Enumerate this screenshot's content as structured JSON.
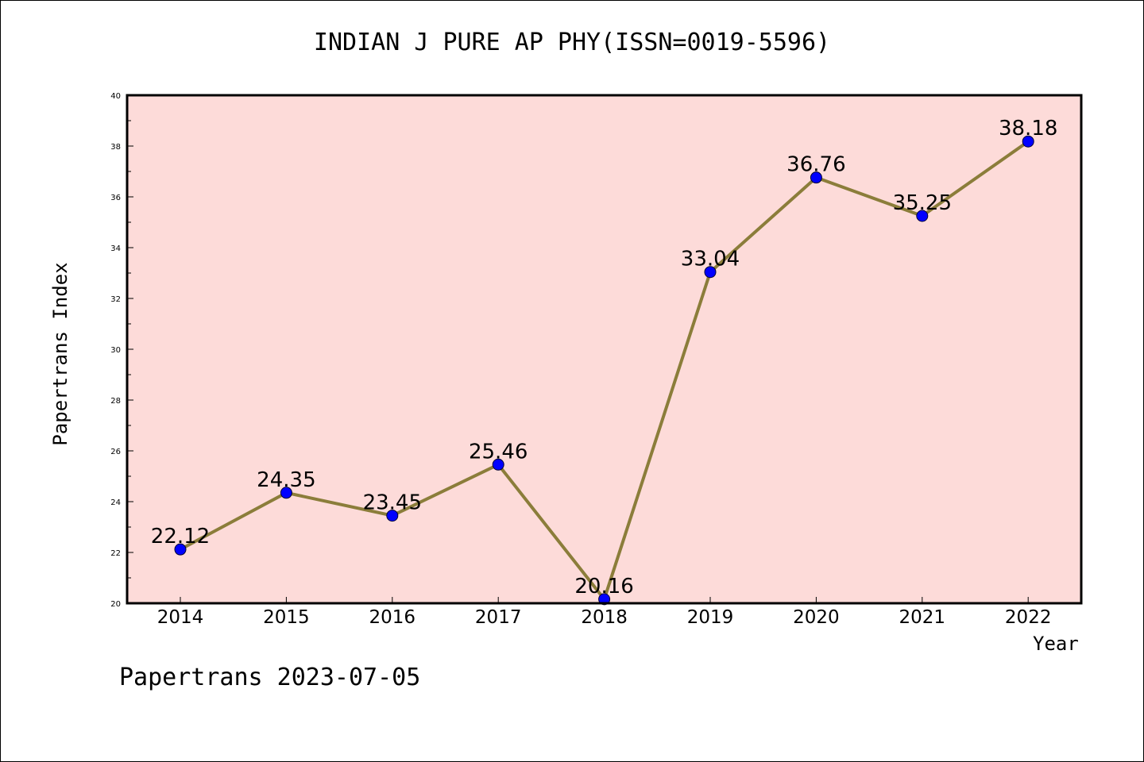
{
  "chart_data": {
    "type": "line",
    "title": "INDIAN J PURE AP PHY(ISSN=0019-5596)",
    "xlabel": "Year",
    "ylabel": "Papertrans Index",
    "x": [
      "2014",
      "2015",
      "2016",
      "2017",
      "2018",
      "2019",
      "2020",
      "2021",
      "2022"
    ],
    "values": [
      22.12,
      24.35,
      23.45,
      25.46,
      20.16,
      33.04,
      36.76,
      35.25,
      38.18
    ],
    "data_labels": [
      "22.12",
      "24.35",
      "23.45",
      "25.46",
      "20.16",
      "33.04",
      "36.76",
      "35.25",
      "38.18"
    ],
    "ylim": [
      20,
      40
    ],
    "yticks": [
      20,
      22,
      24,
      26,
      28,
      30,
      32,
      34,
      36,
      38,
      40
    ],
    "grid": false,
    "legend": "none",
    "colors": {
      "plot_background": "#fddbd9",
      "line": "#8b7d3a",
      "marker": "#0000ff",
      "marker_edge": "#000033"
    }
  },
  "footer": "Papertrans 2023-07-05"
}
